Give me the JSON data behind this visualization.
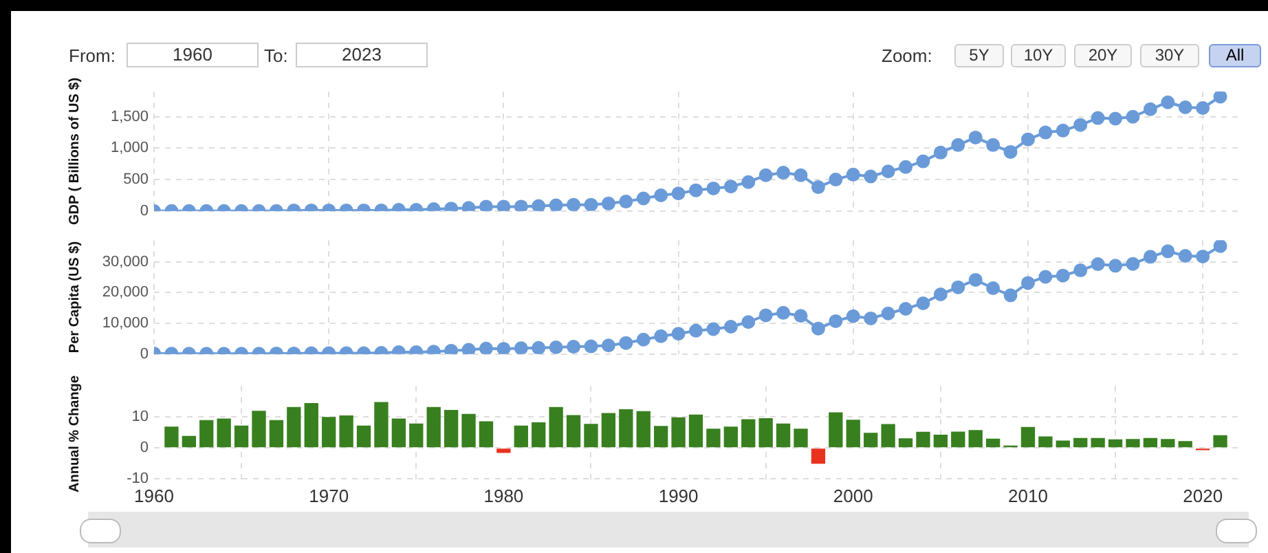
{
  "chart_data": [
    {
      "type": "line",
      "ylabel": "GDP ( Billions of US $)",
      "color": "#6a9bd8",
      "marker": "circle",
      "grid": true,
      "tick_labels": "y",
      "annotations": [
        "From:",
        "1960",
        "To:",
        "2023",
        "Zoom:",
        "5Y",
        "10Y",
        "20Y",
        "30Y",
        "All"
      ],
      "xlim": [
        1960,
        2022
      ],
      "xticks": [
        1960,
        1970,
        1980,
        1990,
        2000,
        2010,
        2020
      ],
      "ylim": [
        0,
        1900
      ],
      "yticks": [
        {
          "value": 0,
          "label": "0"
        },
        {
          "value": 500,
          "label": "500"
        },
        {
          "value": 1000,
          "label": "1,000"
        },
        {
          "value": 1500,
          "label": "1,500"
        }
      ],
      "x": [
        1960,
        1961,
        1962,
        1963,
        1964,
        1965,
        1966,
        1967,
        1968,
        1969,
        1970,
        1971,
        1972,
        1973,
        1974,
        1975,
        1976,
        1977,
        1978,
        1979,
        1980,
        1981,
        1982,
        1983,
        1984,
        1985,
        1986,
        1987,
        1988,
        1989,
        1990,
        1991,
        1992,
        1993,
        1994,
        1995,
        1996,
        1997,
        1998,
        1999,
        2000,
        2001,
        2002,
        2003,
        2004,
        2005,
        2006,
        2007,
        2008,
        2009,
        2010,
        2011,
        2012,
        2013,
        2014,
        2015,
        2016,
        2017,
        2018,
        2019,
        2020,
        2021
      ],
      "values": [
        0,
        0,
        0,
        0,
        0,
        0,
        0,
        0,
        10,
        10,
        10,
        10,
        10,
        10,
        20,
        20,
        30,
        40,
        50,
        70,
        70,
        70,
        80,
        90,
        100,
        100,
        120,
        150,
        200,
        250,
        280,
        330,
        360,
        390,
        460,
        570,
        610,
        570,
        380,
        500,
        580,
        550,
        630,
        700,
        790,
        930,
        1050,
        1170,
        1050,
        940,
        1140,
        1250,
        1280,
        1370,
        1480,
        1470,
        1500,
        1620,
        1730,
        1650,
        1640,
        1820
      ]
    },
    {
      "type": "line",
      "ylabel": "Per Capita (US $)",
      "color": "#6a9bd8",
      "marker": "circle",
      "grid": true,
      "tick_labels": "y",
      "xlim": [
        1960,
        2022
      ],
      "xticks": [
        1960,
        1970,
        1980,
        1990,
        2000,
        2010,
        2020
      ],
      "ylim": [
        0,
        37000
      ],
      "yticks": [
        {
          "value": 0,
          "label": "0"
        },
        {
          "value": 10000,
          "label": "10,000"
        },
        {
          "value": 20000,
          "label": "20,000"
        },
        {
          "value": 30000,
          "label": "30,000"
        }
      ],
      "x": [
        1960,
        1961,
        1962,
        1963,
        1964,
        1965,
        1966,
        1967,
        1968,
        1969,
        1970,
        1971,
        1972,
        1973,
        1974,
        1975,
        1976,
        1977,
        1978,
        1979,
        1980,
        1981,
        1982,
        1983,
        1984,
        1985,
        1986,
        1987,
        1988,
        1989,
        1990,
        1991,
        1992,
        1993,
        1994,
        1995,
        1996,
        1997,
        1998,
        1999,
        2000,
        2001,
        2002,
        2003,
        2004,
        2005,
        2006,
        2007,
        2008,
        2009,
        2010,
        2011,
        2012,
        2013,
        2014,
        2015,
        2016,
        2017,
        2018,
        2019,
        2020,
        2021
      ],
      "values": [
        200,
        100,
        100,
        100,
        100,
        100,
        100,
        200,
        200,
        300,
        300,
        300,
        300,
        400,
        600,
        600,
        800,
        1100,
        1400,
        1800,
        1700,
        1900,
        2000,
        2200,
        2400,
        2500,
        2800,
        3600,
        4700,
        5800,
        6600,
        7600,
        8100,
        8900,
        10400,
        12600,
        13400,
        12400,
        8300,
        10700,
        12300,
        11600,
        13200,
        14700,
        16500,
        19400,
        21700,
        24100,
        21400,
        19100,
        23100,
        25100,
        25500,
        27200,
        29200,
        28700,
        29300,
        31600,
        33400,
        31900,
        31700,
        35100
      ]
    },
    {
      "type": "bar",
      "ylabel": "Annual % Change",
      "grid": true,
      "xlim": [
        1960,
        2022
      ],
      "xticks": [
        1960,
        1970,
        1980,
        1990,
        2000,
        2010,
        2020
      ],
      "ylim": [
        -11,
        20
      ],
      "yticks": [
        -10,
        0,
        10
      ],
      "x": [
        1961,
        1962,
        1963,
        1964,
        1965,
        1966,
        1967,
        1968,
        1969,
        1970,
        1971,
        1972,
        1973,
        1974,
        1975,
        1976,
        1977,
        1978,
        1979,
        1980,
        1981,
        1982,
        1983,
        1984,
        1985,
        1986,
        1987,
        1988,
        1989,
        1990,
        1991,
        1992,
        1993,
        1994,
        1995,
        1996,
        1997,
        1998,
        1999,
        2000,
        2001,
        2002,
        2003,
        2004,
        2005,
        2006,
        2007,
        2008,
        2009,
        2010,
        2011,
        2012,
        2013,
        2014,
        2015,
        2016,
        2017,
        2018,
        2019,
        2020,
        2021
      ],
      "values": [
        6.9,
        3.9,
        9.0,
        9.5,
        7.2,
        12.0,
        9.0,
        13.2,
        14.5,
        10.0,
        10.5,
        7.2,
        14.8,
        9.5,
        7.9,
        13.2,
        12.3,
        11.0,
        8.6,
        -1.6,
        7.2,
        8.3,
        13.2,
        10.6,
        7.8,
        11.3,
        12.5,
        11.9,
        7.1,
        9.9,
        10.8,
        6.2,
        6.9,
        9.3,
        9.6,
        7.9,
        6.2,
        -5.1,
        11.5,
        9.1,
        4.9,
        7.7,
        3.1,
        5.2,
        4.3,
        5.3,
        5.8,
        3.0,
        0.8,
        6.8,
        3.7,
        2.4,
        3.2,
        3.2,
        2.8,
        2.9,
        3.2,
        2.9,
        2.2,
        -0.7,
        4.1
      ],
      "colors": [
        "#38801f",
        "#38801f",
        "#38801f",
        "#38801f",
        "#38801f",
        "#38801f",
        "#38801f",
        "#38801f",
        "#38801f",
        "#38801f",
        "#38801f",
        "#38801f",
        "#38801f",
        "#38801f",
        "#38801f",
        "#38801f",
        "#38801f",
        "#38801f",
        "#38801f",
        "#e8321e",
        "#38801f",
        "#38801f",
        "#38801f",
        "#38801f",
        "#38801f",
        "#38801f",
        "#38801f",
        "#38801f",
        "#38801f",
        "#38801f",
        "#38801f",
        "#38801f",
        "#38801f",
        "#38801f",
        "#38801f",
        "#38801f",
        "#38801f",
        "#e8321e",
        "#38801f",
        "#38801f",
        "#38801f",
        "#38801f",
        "#38801f",
        "#38801f",
        "#38801f",
        "#38801f",
        "#38801f",
        "#38801f",
        "#38801f",
        "#38801f",
        "#38801f",
        "#38801f",
        "#38801f",
        "#38801f",
        "#38801f",
        "#38801f",
        "#38801f",
        "#38801f",
        "#38801f",
        "#e8321e",
        "#38801f"
      ]
    }
  ]
}
